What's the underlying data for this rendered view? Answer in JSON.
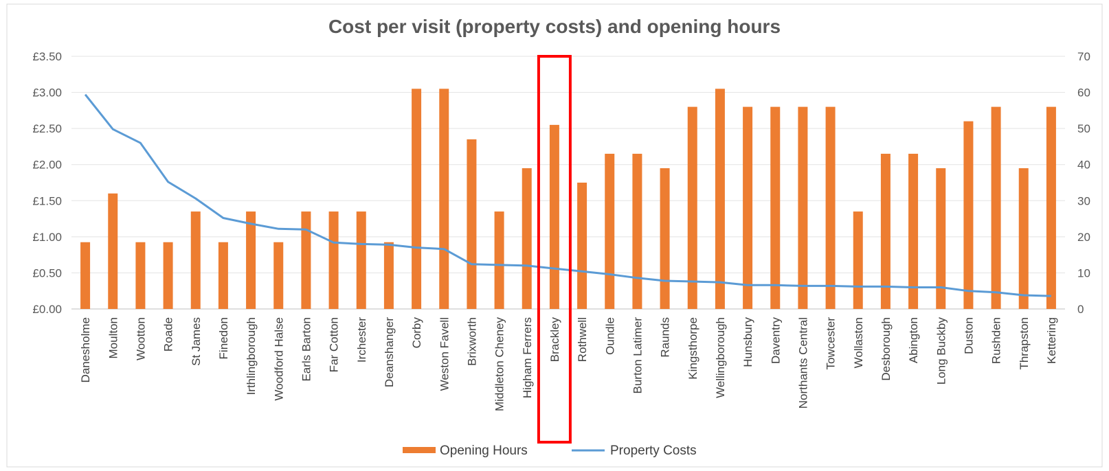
{
  "chart_data": {
    "type": "bar+line",
    "title": "Cost per visit (property costs) and opening hours",
    "categories": [
      "Danesholme",
      "Moulton",
      "Wootton",
      "Roade",
      "St James",
      "Finedon",
      "Irthlingborough",
      "Woodford Halse",
      "Earls Barton",
      "Far Cotton",
      "Irchester",
      "Deanshanger",
      "Corby",
      "Weston Favell",
      "Brixworth",
      "Middleton Cheney",
      "Higham Ferrers",
      "Brackley",
      "Rothwell",
      "Oundle",
      "Burton Latimer",
      "Raunds",
      "Kingsthorpe",
      "Wellingborough",
      "Hunsbury",
      "Daventry",
      "Northants Central",
      "Towcester",
      "Wollaston",
      "Desborough",
      "Abington",
      "Long Buckby",
      "Duston",
      "Rushden",
      "Thrapston",
      "Kettering"
    ],
    "series": [
      {
        "name": "Opening Hours",
        "kind": "bar",
        "axis": "right",
        "color": "#ed7d31",
        "values": [
          18.5,
          32,
          18.5,
          18.5,
          27,
          18.5,
          27,
          18.5,
          27,
          27,
          27,
          18.5,
          61,
          61,
          47,
          27,
          39,
          51,
          35,
          43,
          43,
          39,
          56,
          61,
          56,
          56,
          56,
          56,
          27,
          43,
          43,
          39,
          52,
          56,
          39,
          56
        ]
      },
      {
        "name": "Property Costs",
        "kind": "line",
        "axis": "left",
        "color": "#5b9bd5",
        "values": [
          2.97,
          2.49,
          2.3,
          1.76,
          1.53,
          1.26,
          1.18,
          1.11,
          1.1,
          0.92,
          0.9,
          0.89,
          0.85,
          0.83,
          0.62,
          0.61,
          0.6,
          0.56,
          0.52,
          0.48,
          0.43,
          0.39,
          0.38,
          0.37,
          0.33,
          0.33,
          0.32,
          0.32,
          0.31,
          0.31,
          0.3,
          0.3,
          0.25,
          0.23,
          0.19,
          0.18
        ]
      }
    ],
    "y_left": {
      "ylim": [
        0,
        3.5
      ],
      "ticks": [
        "£0.00",
        "£0.50",
        "£1.00",
        "£1.50",
        "£2.00",
        "£2.50",
        "£3.00",
        "£3.50"
      ]
    },
    "y_right": {
      "ylim": [
        0,
        70
      ],
      "ticks": [
        "0",
        "10",
        "20",
        "30",
        "40",
        "50",
        "60",
        "70"
      ]
    },
    "highlight": {
      "category": "Brackley",
      "color": "#ff0000"
    },
    "grid": true,
    "legend": "bottom"
  }
}
